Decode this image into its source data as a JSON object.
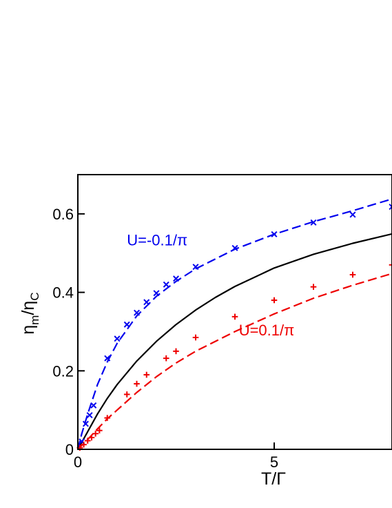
{
  "chart_data": {
    "type": "line",
    "title": "",
    "xlabel": "T/Γ",
    "ylabel": "ηm/ηC",
    "ylabel_parts": {
      "base": "η",
      "sub1": "m",
      "sep": "/η",
      "sub2": "C"
    },
    "xlim": [
      0,
      8
    ],
    "ylim": [
      0,
      0.7
    ],
    "x_ticks": [
      0,
      5
    ],
    "x_tick_labels": [
      "0",
      "5"
    ],
    "y_ticks": [
      0,
      0.2,
      0.4,
      0.6
    ],
    "y_tick_labels": [
      "0",
      "0.2",
      "0.4",
      "0.6"
    ],
    "grid": false,
    "legend": "none",
    "annotations": [
      {
        "text": "U=-0.1/π",
        "x": 1.25,
        "y": 0.52,
        "color": "#0000ee"
      },
      {
        "text": "U=0.1/π",
        "x": 4.1,
        "y": 0.29,
        "color": "#ee0000"
      }
    ],
    "series": [
      {
        "style": "solid",
        "color": "#000000",
        "x": [
          0,
          0.25,
          0.5,
          0.75,
          1,
          1.5,
          2,
          2.5,
          3,
          3.5,
          4,
          5,
          6,
          7,
          8
        ],
        "values": [
          0,
          0.045,
          0.09,
          0.13,
          0.165,
          0.225,
          0.275,
          0.318,
          0.355,
          0.387,
          0.415,
          0.462,
          0.497,
          0.525,
          0.549
        ]
      },
      {
        "style": "dashed",
        "color": "#0000ee",
        "x": [
          0,
          0.1,
          0.25,
          0.5,
          0.75,
          1,
          1.5,
          2,
          2.5,
          3,
          4,
          5,
          6,
          7,
          8
        ],
        "values": [
          0,
          0.04,
          0.09,
          0.165,
          0.223,
          0.27,
          0.34,
          0.39,
          0.428,
          0.46,
          0.51,
          0.548,
          0.58,
          0.608,
          0.638
        ]
      },
      {
        "style": "dashed",
        "color": "#ee0000",
        "x": [
          0,
          0.25,
          0.5,
          0.75,
          1,
          1.5,
          2,
          2.5,
          3,
          4,
          5,
          6,
          7,
          8
        ],
        "values": [
          0,
          0.025,
          0.052,
          0.078,
          0.1,
          0.145,
          0.185,
          0.22,
          0.25,
          0.3,
          0.345,
          0.385,
          0.418,
          0.448
        ]
      },
      {
        "marker": "x",
        "color": "#0000ee",
        "x": [
          0.1,
          0.2,
          0.3,
          0.4,
          0.75,
          1.0,
          1.25,
          1.5,
          1.75,
          2.0,
          2.25,
          2.5,
          3.0,
          4.0,
          5.0,
          6.0,
          7.0,
          8.0
        ],
        "values": [
          0.02,
          0.065,
          0.087,
          0.112,
          0.232,
          0.282,
          0.318,
          0.348,
          0.375,
          0.398,
          0.42,
          0.435,
          0.465,
          0.513,
          0.548,
          0.578,
          0.598,
          0.618
        ]
      },
      {
        "marker": "+",
        "color": "#ee0000",
        "x": [
          0.05,
          0.15,
          0.25,
          0.35,
          0.45,
          0.55,
          0.75,
          1.25,
          1.5,
          1.75,
          2.25,
          2.5,
          3.0,
          4.0,
          5.0,
          6.0,
          7.0,
          8.0
        ],
        "values": [
          0.004,
          0.012,
          0.022,
          0.03,
          0.04,
          0.048,
          0.08,
          0.14,
          0.167,
          0.19,
          0.232,
          0.25,
          0.285,
          0.338,
          0.38,
          0.414,
          0.445,
          0.47
        ]
      }
    ]
  }
}
